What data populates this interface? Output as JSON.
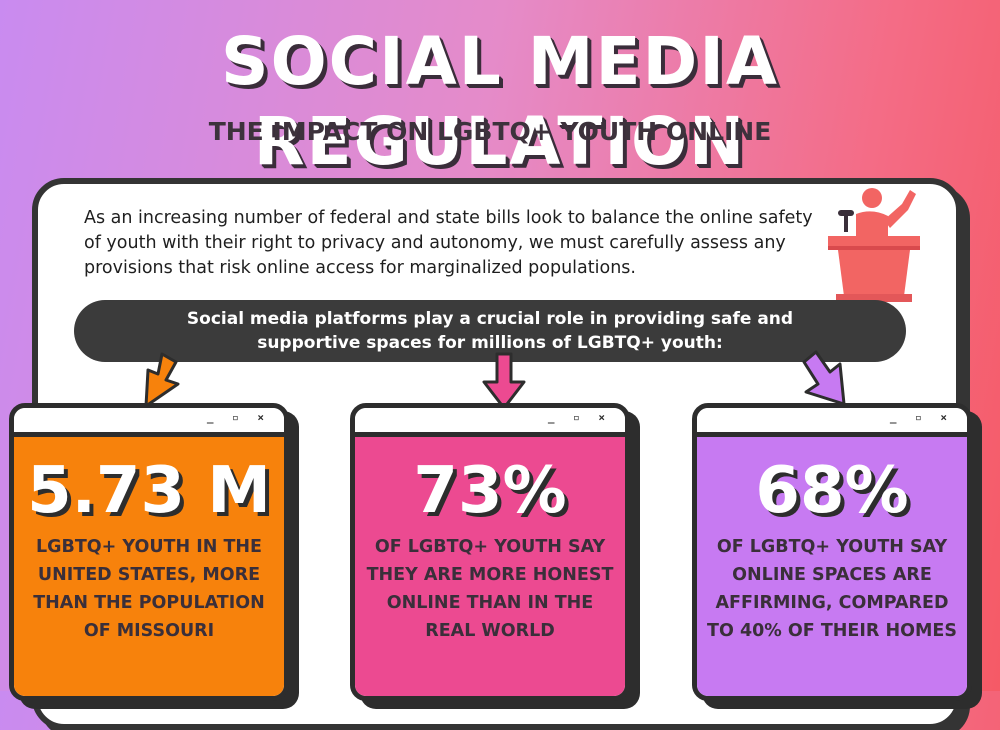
{
  "header": {
    "title": "SOCIAL MEDIA REGULATION",
    "subtitle": "THE IMPACT ON LGBTQ+ YOUTH ONLINE"
  },
  "intro": {
    "text": "As an increasing number of federal and state bills look to balance the online safety of youth with their right to privacy and autonomy, we must carefully assess any provisions that risk online access for marginalized populations."
  },
  "banner": {
    "text": "Social media platforms play a crucial role in providing safe and supportive spaces for millions of LGBTQ+ youth:"
  },
  "window_controls": "_ ▫ ×",
  "cards": [
    {
      "stat": "5.73 M",
      "description": "LGBTQ+ YOUTH IN THE UNITED STATES, MORE THAN THE POPULATION OF MISSOURI",
      "color": "#f7820c",
      "arrow_color": "#f7820c"
    },
    {
      "stat": "73%",
      "description": "OF LGBTQ+ YOUTH SAY THEY ARE MORE HONEST ONLINE THAN IN THE REAL WORLD",
      "color": "#ec4a91",
      "arrow_color": "#ec4a91"
    },
    {
      "stat": "68%",
      "description": "OF LGBTQ+ YOUTH SAY ONLINE SPACES ARE AFFIRMING, COMPARED TO 40% OF THEIR HOMES",
      "color": "#c77af2",
      "arrow_color": "#c77af2"
    }
  ],
  "icons": {
    "speaker": "speaker-at-podium-icon",
    "arrow": "down-arrow-icon"
  },
  "colors": {
    "panel_border": "#343434",
    "banner_bg": "#3b3b3b",
    "podium": "#f26563"
  }
}
